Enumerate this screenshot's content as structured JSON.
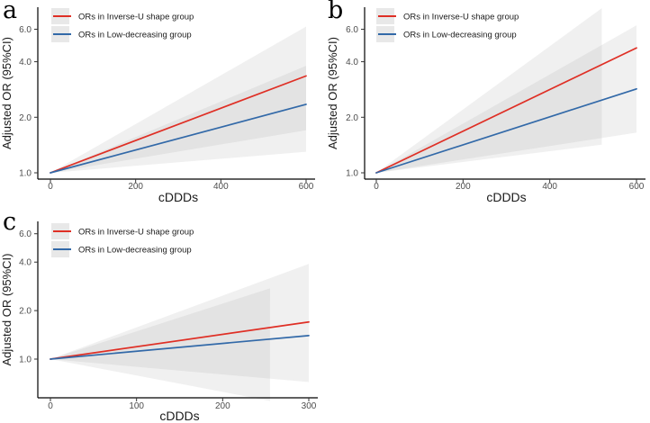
{
  "figure_title": "",
  "colors": {
    "red": "#df2f25",
    "blue": "#3269a8",
    "ribbon_fill": "#8c8c8c",
    "ribbon_opacity": 0.13,
    "axis": "#000000",
    "tick": "#333333",
    "tick_label": "#4d4d4d",
    "text": "#1a1a1a",
    "legend_key_bg": "#e8e8e8"
  },
  "chart_data": [
    {
      "panel_label": "a",
      "type": "line",
      "xlabel": "cDDDs",
      "ylabel": "Adjusted OR (95%CI)",
      "x_ticks": [
        0,
        200,
        400,
        600
      ],
      "xlim": [
        0,
        600
      ],
      "y_scale": "log",
      "y_ticks": [
        1.0,
        2.0,
        4.0,
        6.0
      ],
      "y_tick_labels": [
        "1.0",
        "2.0",
        "4.0",
        "6.0"
      ],
      "ylim": [
        0.92,
        7.9
      ],
      "legend_position": "top-left-inside",
      "grid": false,
      "series": [
        {
          "name": "ORs in Inverse-U shape group",
          "color_key": "red",
          "x": [
            0,
            600
          ],
          "or": [
            1.0,
            3.35
          ],
          "ci": {
            "x_end": 600,
            "upper_start": 1.0,
            "lower_start": 1.0,
            "upper_end": 6.2,
            "lower_end": 1.7
          }
        },
        {
          "name": "ORs in Low-decreasing group",
          "color_key": "blue",
          "x": [
            0,
            600
          ],
          "or": [
            1.0,
            2.35
          ],
          "ci": {
            "x_end": 600,
            "upper_start": 1.0,
            "lower_start": 1.0,
            "upper_end": 3.8,
            "lower_end": 1.3
          }
        }
      ]
    },
    {
      "panel_label": "b",
      "type": "line",
      "xlabel": "cDDDs",
      "ylabel": "Adjusted OR (95%CI)",
      "x_ticks": [
        0,
        200,
        400,
        600
      ],
      "xlim": [
        0,
        600
      ],
      "y_scale": "log",
      "y_ticks": [
        1.0,
        2.0,
        4.0,
        6.0
      ],
      "y_tick_labels": [
        "1.0",
        "2.0",
        "4.0",
        "6.0"
      ],
      "ylim": [
        0.92,
        7.9
      ],
      "legend_position": "top-left-inside",
      "grid": false,
      "series": [
        {
          "name": "ORs in Inverse-U shape group",
          "color_key": "red",
          "x": [
            0,
            600
          ],
          "or": [
            1.0,
            4.75
          ],
          "ci": {
            "x_end": 600,
            "upper_start": 1.0,
            "lower_start": 1.0,
            "upper_end": 6.3,
            "lower_end": 1.65
          }
        },
        {
          "name": "ORs in Low-decreasing group",
          "color_key": "blue",
          "x": [
            0,
            600
          ],
          "or": [
            1.0,
            2.85
          ],
          "ci": {
            "x_end": 520,
            "upper_start": 1.0,
            "lower_start": 1.0,
            "upper_end": 7.8,
            "lower_end": 1.42
          }
        }
      ]
    },
    {
      "panel_label": "c",
      "type": "line",
      "xlabel": "cDDDs",
      "ylabel": "Adjusted OR (95%CI)",
      "x_ticks": [
        0,
        100,
        200,
        300
      ],
      "xlim": [
        0,
        300
      ],
      "y_scale": "log",
      "y_ticks": [
        1.0,
        2.0,
        4.0,
        6.0
      ],
      "y_tick_labels": [
        "1.0",
        "2.0",
        "4.0",
        "6.0"
      ],
      "ylim": [
        0.57,
        7.1
      ],
      "legend_position": "top-left-inside",
      "grid": false,
      "series": [
        {
          "name": "ORs in Inverse-U shape group",
          "color_key": "red",
          "x": [
            0,
            300
          ],
          "or": [
            1.0,
            1.7
          ],
          "ci": {
            "x_end": 300,
            "upper_start": 1.0,
            "lower_start": 1.0,
            "upper_end": 3.9,
            "lower_end": 0.72
          }
        },
        {
          "name": "ORs in Low-decreasing group",
          "color_key": "blue",
          "x": [
            0,
            300
          ],
          "or": [
            1.0,
            1.4
          ],
          "ci": {
            "x_end": 255,
            "upper_start": 1.0,
            "lower_start": 1.0,
            "upper_end": 2.75,
            "lower_end": 0.55
          }
        }
      ]
    }
  ]
}
